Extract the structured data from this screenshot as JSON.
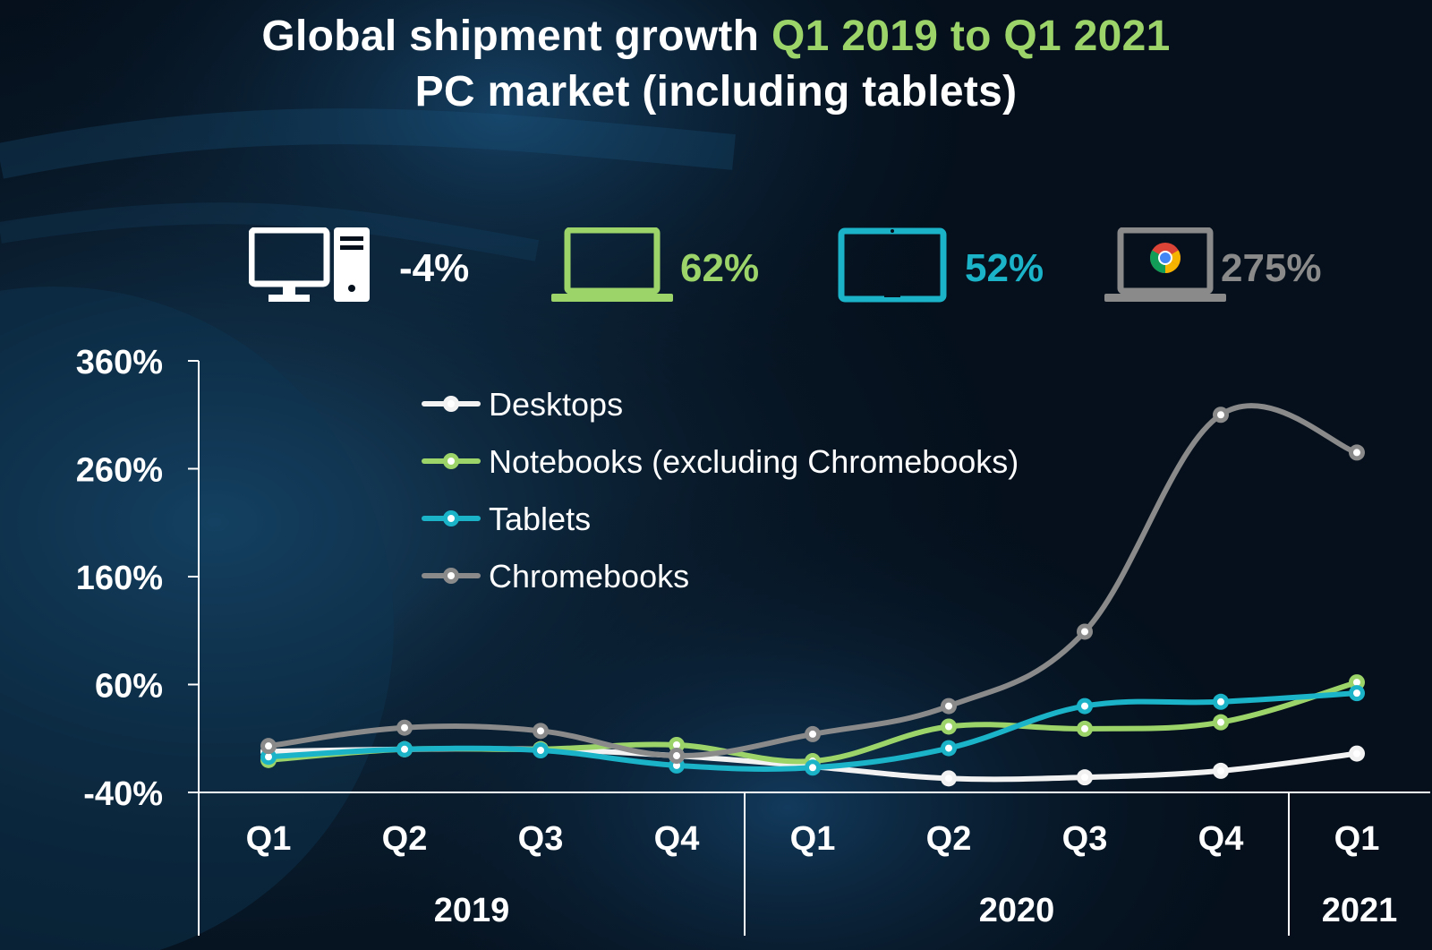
{
  "title": {
    "line1_prefix": "Global shipment growth ",
    "line1_highlight": "Q1 2019 to Q1 2021",
    "line2": "PC market (including tablets)"
  },
  "summary": [
    {
      "device": "desktop-icon",
      "value": "-4%",
      "color": "#ffffff"
    },
    {
      "device": "notebook-icon",
      "value": "62%",
      "color": "#9dd46a"
    },
    {
      "device": "tablet-icon",
      "value": "52%",
      "color": "#1ab3c8"
    },
    {
      "device": "chromebook-icon",
      "value": "275%",
      "color": "#8a8a8a"
    }
  ],
  "chart_data": {
    "type": "line",
    "title": "Global shipment growth Q1 2019 to Q1 2021 — PC market (including tablets)",
    "categories": [
      "Q1",
      "Q2",
      "Q3",
      "Q4",
      "Q1",
      "Q2",
      "Q3",
      "Q4",
      "Q1"
    ],
    "years": [
      {
        "label": "2019",
        "from": 0,
        "to": 3
      },
      {
        "label": "2020",
        "from": 4,
        "to": 7
      },
      {
        "label": "2021",
        "from": 8,
        "to": 8
      }
    ],
    "ylim": [
      -40,
      360
    ],
    "yticks": [
      -40,
      60,
      160,
      260,
      360
    ],
    "ytick_labels": [
      "-40%",
      "60%",
      "160%",
      "260%",
      "360%"
    ],
    "legend_position": "upper-left",
    "series": [
      {
        "name": "Desktops",
        "color": "#f2f2f2",
        "values": [
          -2,
          0,
          0,
          -6,
          -16,
          -27,
          -26,
          -20,
          -4
        ]
      },
      {
        "name": "Notebooks (excluding Chromebooks)",
        "color": "#9dd46a",
        "values": [
          -10,
          0,
          0,
          4,
          -11,
          21,
          19,
          25,
          62
        ]
      },
      {
        "name": "Tablets",
        "color": "#1ab3c8",
        "values": [
          -7,
          0,
          -1,
          -15,
          -17,
          1,
          40,
          44,
          52
        ]
      },
      {
        "name": "Chromebooks",
        "color": "#8a8a8a",
        "values": [
          3,
          20,
          17,
          -6,
          14,
          40,
          109,
          310,
          275
        ]
      }
    ]
  }
}
